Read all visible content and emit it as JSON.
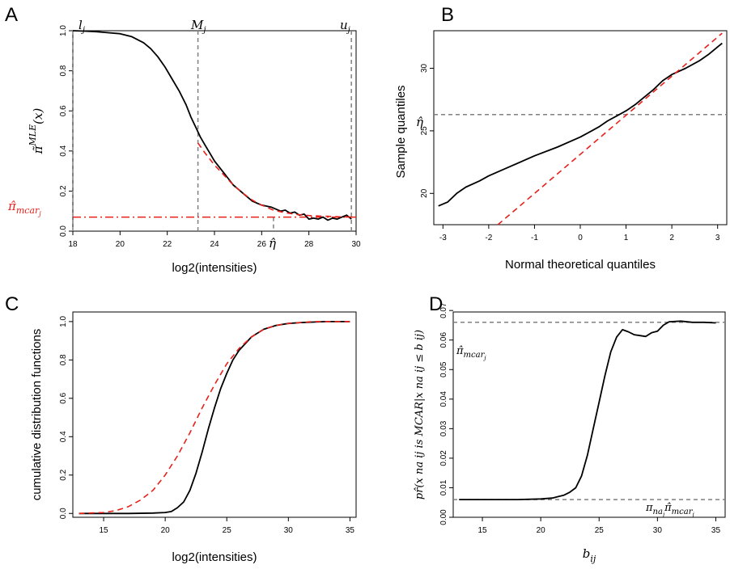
{
  "colors": {
    "main": "#000000",
    "fit": "#e8201a",
    "guide": "#808080"
  },
  "chart_data": [
    {
      "panel": "A",
      "type": "line",
      "xlabel": "log2(intensities)",
      "ylabel": "π̃",
      "ylabel_sup": "MLE",
      "ylabel_arg": "(x)",
      "xlim": [
        18,
        30
      ],
      "ylim": [
        0,
        1
      ],
      "xticks": [
        18,
        20,
        22,
        24,
        26,
        28,
        30
      ],
      "yticks": [
        0.0,
        0.2,
        0.4,
        0.6,
        0.8,
        1.0
      ],
      "ytick_labels": [
        "0.0",
        "0.2",
        "0.4",
        "0.6",
        "0.8",
        "1.0"
      ],
      "vlines": [
        {
          "x": 18.0,
          "label": "l",
          "sub": "j"
        },
        {
          "x": 23.3,
          "label": "M",
          "sub": "j"
        },
        {
          "x": 29.8,
          "label": "u",
          "sub": "j"
        }
      ],
      "eta": {
        "x": 26.5,
        "label": "η̂"
      },
      "hline": {
        "y": 0.07,
        "label": "π̂",
        "sub": "mcar",
        "subsub": "j"
      },
      "series": [
        {
          "style": "solid",
          "x": [
            18.0,
            18.5,
            19.0,
            19.5,
            20.0,
            20.5,
            21.0,
            21.3,
            21.6,
            21.9,
            22.2,
            22.5,
            22.8,
            23.0,
            23.2,
            23.4,
            23.6,
            23.8,
            24.0,
            24.2,
            24.4,
            24.6,
            24.8,
            25.0,
            25.2,
            25.4,
            25.6,
            25.8,
            26.0,
            26.2,
            26.4,
            26.6,
            26.8,
            27.0,
            27.2,
            27.4,
            27.6,
            27.8,
            28.0,
            28.2,
            28.4,
            28.6,
            28.8,
            29.0,
            29.2,
            29.4,
            29.6,
            29.8
          ],
          "y": [
            1.0,
            0.998,
            0.995,
            0.99,
            0.985,
            0.97,
            0.94,
            0.91,
            0.87,
            0.82,
            0.76,
            0.7,
            0.63,
            0.57,
            0.52,
            0.47,
            0.43,
            0.39,
            0.35,
            0.32,
            0.29,
            0.26,
            0.23,
            0.21,
            0.19,
            0.17,
            0.15,
            0.14,
            0.13,
            0.125,
            0.12,
            0.11,
            0.1,
            0.105,
            0.09,
            0.095,
            0.08,
            0.085,
            0.06,
            0.065,
            0.06,
            0.07,
            0.055,
            0.065,
            0.06,
            0.07,
            0.08,
            0.06
          ]
        },
        {
          "style": "dashed",
          "x": [
            23.3,
            23.6,
            24.0,
            24.4,
            24.8,
            25.2,
            25.6,
            26.0,
            26.5,
            27.0,
            27.5,
            28.0,
            28.5,
            29.0,
            29.5,
            29.8
          ],
          "y": [
            0.44,
            0.39,
            0.33,
            0.28,
            0.23,
            0.19,
            0.155,
            0.13,
            0.105,
            0.092,
            0.083,
            0.078,
            0.075,
            0.073,
            0.071,
            0.071
          ]
        }
      ]
    },
    {
      "panel": "B",
      "type": "line",
      "xlabel": "Normal theoretical quantiles",
      "ylabel": "Sample quantiles",
      "xlim": [
        -3.2,
        3.2
      ],
      "ylim": [
        17.5,
        33
      ],
      "xticks": [
        -3,
        -2,
        -1,
        0,
        1,
        2,
        3
      ],
      "yticks": [
        20,
        25,
        30
      ],
      "hline": {
        "y": 26.3,
        "label": "η̂"
      },
      "series": [
        {
          "style": "solid",
          "x": [
            -3.1,
            -2.9,
            -2.7,
            -2.5,
            -2.2,
            -2.0,
            -1.5,
            -1.0,
            -0.5,
            0.0,
            0.2,
            0.4,
            0.6,
            0.8,
            1.0,
            1.2,
            1.4,
            1.6,
            1.8,
            2.0,
            2.3,
            2.6,
            2.8,
            3.0,
            3.1
          ],
          "y": [
            19.0,
            19.3,
            20.0,
            20.5,
            21.0,
            21.4,
            22.2,
            23.0,
            23.7,
            24.5,
            24.9,
            25.3,
            25.8,
            26.2,
            26.6,
            27.1,
            27.7,
            28.3,
            29.0,
            29.5,
            30.0,
            30.6,
            31.1,
            31.7,
            32.0
          ]
        },
        {
          "style": "dashed",
          "x": [
            -1.8,
            3.1
          ],
          "y": [
            17.5,
            32.8
          ]
        }
      ]
    },
    {
      "panel": "C",
      "type": "line",
      "xlabel": "log2(intensities)",
      "ylabel": "cumulative distribution functions",
      "xlim": [
        12.5,
        35.5
      ],
      "ylim": [
        -0.02,
        1.05
      ],
      "xticks": [
        15,
        20,
        25,
        30,
        35
      ],
      "yticks": [
        0.0,
        0.2,
        0.4,
        0.6,
        0.8,
        1.0
      ],
      "ytick_labels": [
        "0.0",
        "0.2",
        "0.4",
        "0.6",
        "0.8",
        "1.0"
      ],
      "series": [
        {
          "style": "solid",
          "x": [
            13,
            15,
            17,
            19,
            20,
            20.5,
            21,
            21.5,
            22,
            22.5,
            23,
            23.5,
            24,
            24.5,
            25,
            25.5,
            26,
            27,
            28,
            29,
            30,
            31,
            33,
            35
          ],
          "y": [
            0.0,
            0.0,
            0.0,
            0.002,
            0.005,
            0.01,
            0.03,
            0.06,
            0.12,
            0.21,
            0.32,
            0.44,
            0.55,
            0.65,
            0.73,
            0.8,
            0.85,
            0.92,
            0.96,
            0.98,
            0.99,
            0.995,
            1.0,
            1.0
          ]
        },
        {
          "style": "dashed",
          "x": [
            13,
            15,
            16,
            17,
            18,
            19,
            20,
            21,
            22,
            23,
            24,
            25,
            26,
            27,
            28,
            29,
            30,
            31,
            32,
            35
          ],
          "y": [
            0.0,
            0.005,
            0.015,
            0.035,
            0.07,
            0.12,
            0.2,
            0.3,
            0.42,
            0.55,
            0.67,
            0.78,
            0.86,
            0.92,
            0.96,
            0.98,
            0.99,
            0.995,
            1.0,
            1.0
          ]
        }
      ]
    },
    {
      "panel": "D",
      "type": "line",
      "xlabel": "b",
      "xlabel_sub": "ij",
      "ylabel": "pr̂(x na ij is MCAR|x na ij ≤ b ij)",
      "xlim": [
        12.5,
        35.8
      ],
      "ylim": [
        0.0,
        0.0695
      ],
      "xticks": [
        15,
        20,
        25,
        30,
        35
      ],
      "yticks": [
        0.0,
        0.01,
        0.02,
        0.03,
        0.04,
        0.05,
        0.06,
        0.07
      ],
      "ytick_labels": [
        "0.00",
        "0.01",
        "0.02",
        "0.03",
        "0.04",
        "0.05",
        "0.06",
        "0.07"
      ],
      "hlines": [
        {
          "y": 0.066,
          "label": "π̂",
          "sub": "mcar",
          "subsub": "j"
        },
        {
          "y": 0.006,
          "label": "π",
          "sub": "na",
          "subsub": "j",
          "label2": "π̂",
          "sub2": "mcar",
          "subsub2": "j"
        }
      ],
      "series": [
        {
          "style": "solid",
          "x": [
            13,
            15,
            18,
            20,
            21,
            21.5,
            22,
            22.5,
            23,
            23.5,
            24,
            24.5,
            25,
            25.5,
            26,
            26.5,
            27,
            27.5,
            28,
            28.5,
            29,
            29.5,
            30,
            30.5,
            31,
            32,
            33,
            34,
            35
          ],
          "y": [
            0.006,
            0.006,
            0.006,
            0.0062,
            0.0065,
            0.007,
            0.0075,
            0.0085,
            0.01,
            0.014,
            0.021,
            0.03,
            0.039,
            0.048,
            0.056,
            0.061,
            0.0635,
            0.0628,
            0.0618,
            0.0615,
            0.0612,
            0.0625,
            0.063,
            0.065,
            0.0662,
            0.0664,
            0.066,
            0.066,
            0.0658
          ]
        }
      ]
    }
  ]
}
